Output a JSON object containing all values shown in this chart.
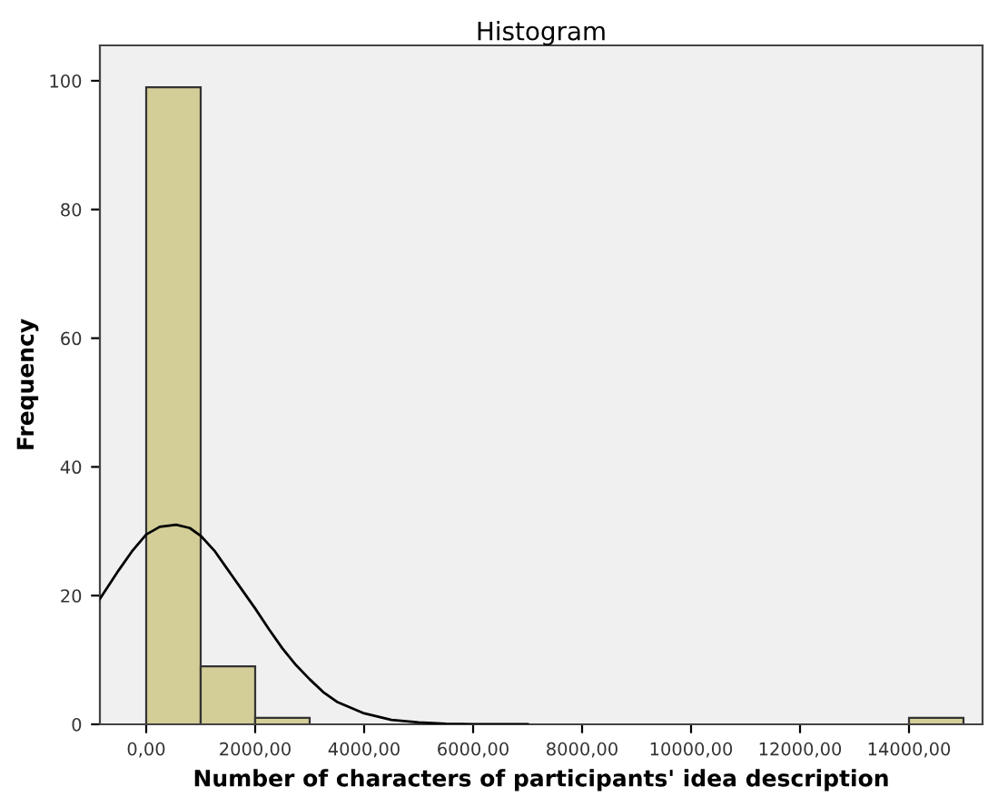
{
  "chart_data": {
    "type": "histogram",
    "title": "Histogram",
    "xlabel": "Number of characters of participants' idea description",
    "ylabel": "Frequency",
    "bins": [
      0,
      1000,
      2000,
      3000,
      4000,
      5000,
      6000,
      7000,
      8000,
      9000,
      10000,
      11000,
      12000,
      13000,
      14000,
      15000
    ],
    "values": [
      99,
      9,
      1,
      0,
      0,
      0,
      0,
      0,
      0,
      0,
      0,
      0,
      0,
      0,
      1
    ],
    "color": "#d3ce97",
    "series": [
      {
        "type": "line",
        "color": "#000000",
        "x": [
          -850,
          -500,
          -250,
          0,
          250,
          550,
          800,
          1000,
          1250,
          1500,
          1750,
          2000,
          2250,
          2500,
          2750,
          3000,
          3250,
          3500,
          4000,
          4500,
          5000,
          5500,
          6000,
          7000
        ],
        "values": [
          19.5,
          24,
          27,
          29.5,
          30.7,
          31,
          30.5,
          29.3,
          27,
          24,
          21,
          18,
          14.8,
          11.8,
          9.2,
          7,
          5,
          3.5,
          1.7,
          0.7,
          0.3,
          0.1,
          0,
          0
        ]
      }
    ],
    "xlim": [
      -850,
      15350
    ],
    "ylim": [
      0,
      105.5
    ],
    "xticks": [
      {
        "value": 0,
        "label": "0,00"
      },
      {
        "value": 2000,
        "label": "2000,00"
      },
      {
        "value": 4000,
        "label": "4000,00"
      },
      {
        "value": 6000,
        "label": "6000,00"
      },
      {
        "value": 8000,
        "label": "8000,00"
      },
      {
        "value": 10000,
        "label": "10000,00"
      },
      {
        "value": 12000,
        "label": "12000,00"
      },
      {
        "value": 14000,
        "label": "14000,00"
      }
    ],
    "yticks": [
      0,
      20,
      40,
      60,
      80,
      100
    ],
    "grid": false,
    "legend": false
  }
}
